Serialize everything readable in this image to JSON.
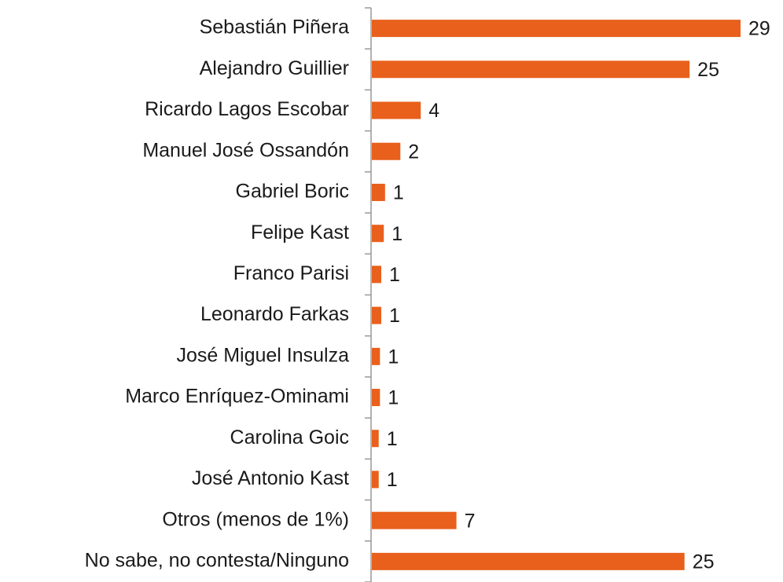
{
  "chart_data": {
    "type": "bar",
    "orientation": "horizontal",
    "categories": [
      "Sebastián Piñera",
      "Alejandro Guillier",
      "Ricardo Lagos Escobar",
      "Manuel José Ossandón",
      "Gabriel Boric",
      "Felipe Kast",
      "Franco Parisi",
      "Leonardo Farkas",
      "José Miguel Insulza",
      "Marco Enríquez-Ominami",
      "Carolina Goic",
      "José Antonio Kast",
      "Otros (menos de 1%)",
      "No sabe, no contesta/Ninguno"
    ],
    "values": [
      29,
      25,
      3.9,
      2.3,
      1.1,
      1.0,
      0.8,
      0.8,
      0.7,
      0.7,
      0.6,
      0.6,
      6.7,
      24.6
    ],
    "value_labels": [
      "29",
      "25",
      "4",
      "2",
      "1",
      "1",
      "1",
      "1",
      "1",
      "1",
      "1",
      "1",
      "7",
      "25"
    ],
    "color": "#e8601c"
  }
}
